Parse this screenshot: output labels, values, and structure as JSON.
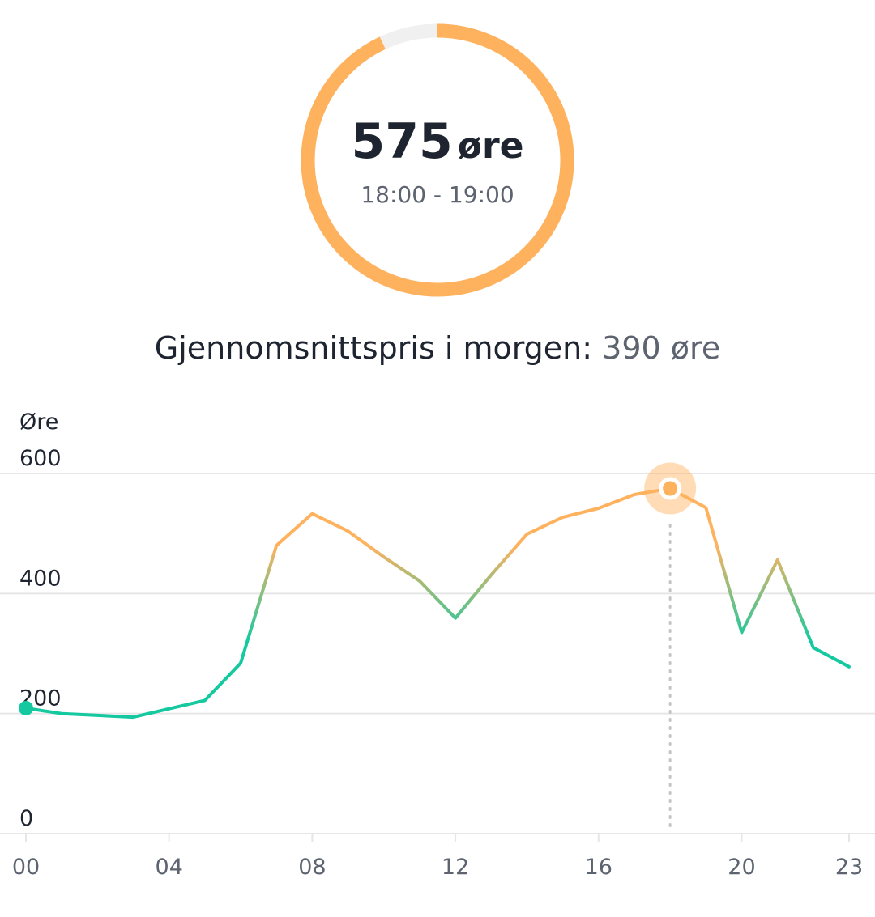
{
  "gauge": {
    "value": "575",
    "unit": "øre",
    "time_range": "18:00 - 19:00",
    "fill_fraction": 0.93,
    "color": "#ffb25e",
    "track_color": "#f0f0f0"
  },
  "average": {
    "label": "Gjennomsnittspris i morgen:",
    "value": "390 øre"
  },
  "colors": {
    "high": "#ffb25e",
    "low": "#14c9a0",
    "grid": "#e6e6e6",
    "axis_text": "#5d6470"
  },
  "chart_data": {
    "type": "line",
    "ylabel": "Øre",
    "xlabel": "",
    "ylim": [
      0,
      600
    ],
    "yticks": [
      "0",
      "200",
      "400",
      "600"
    ],
    "xticks": [
      "00",
      "04",
      "08",
      "12",
      "16",
      "20",
      "23"
    ],
    "x": [
      0,
      1,
      2,
      3,
      4,
      5,
      6,
      7,
      8,
      9,
      10,
      11,
      12,
      13,
      14,
      15,
      16,
      17,
      18,
      19,
      20,
      21,
      22,
      23
    ],
    "values": [
      209,
      200,
      197,
      194,
      208,
      222,
      284,
      480,
      533,
      504,
      461,
      421,
      359,
      431,
      499,
      527,
      542,
      565,
      575,
      543,
      335,
      456,
      310,
      278
    ],
    "highlight_index": 18,
    "color_threshold": 400,
    "grid": true
  }
}
